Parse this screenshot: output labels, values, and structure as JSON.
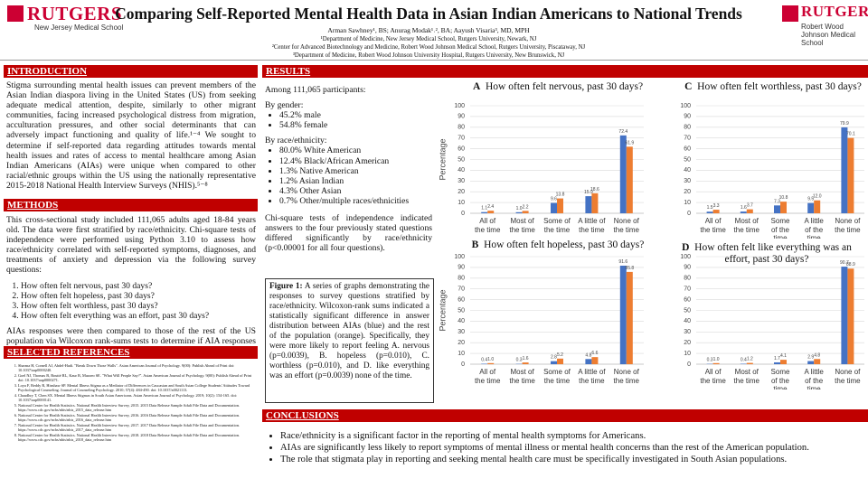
{
  "header": {
    "left_logo": "RUTGERS",
    "left_school": "New Jersey Medical School",
    "title": "Comparing Self-Reported Mental Health Data in Asian Indian Americans to National Trends",
    "authors": "Arman Sawhney¹, BS; Anurag Modak¹˒², BA; Aayush Visaria³, MD, MPH",
    "affiliations": [
      "¹Department of Medicine, New Jersey Medical School, Rutgers University, Newark, NJ",
      "²Center for Advanced Biotechnology and Medicine, Robert Wood Johnson Medical School, Rutgers University, Piscataway, NJ",
      "³Department of Medicine, Robert Wood Johnson University Hospital, Rutgers University, New Brunswick, NJ"
    ],
    "right_logo": "RUTGERS",
    "right_school": "Robert Wood Johnson Medical School"
  },
  "introduction": {
    "heading": "INTRODUCTION",
    "text": "Stigma surrounding mental health issues can prevent members of the Asian Indian diaspora living in the United States (US) from seeking adequate medical attention, despite, similarly to other migrant communities, facing increased psychological distress from migration, acculturation pressures, and other social determinants that can adversely impact functioning and quality of life.¹⁻⁴ We sought to determine if self-reported data regarding attitudes towards mental health issues and rates of access to mental healthcare among Asian Indian Americans (AIAs) were unique when compared to other racial/ethnic groups within the US using the nationally representative 2015-2018 National Health Interview Surveys (NHIS).⁵⁻⁸"
  },
  "methods": {
    "heading": "METHODS",
    "text": "This cross-sectional study included 111,065 adults aged 18-84 years old. The data were first stratified by race/ethnicity. Chi-square tests of independence were performed using Python 3.10 to assess how race/ethnicity correlated with self-reported symptoms, diagnoses, and treatments of anxiety and depression via the following survey questions:",
    "questions": [
      "How often felt nervous, past 30 days?",
      "How often felt hopeless, past 30 days?",
      "How often felt worthless, past 30 days?",
      "How often felt everything was an effort, past 30 days?"
    ],
    "closing": "AIAs responses were then compared to those of the rest of the US population via Wilcoxon rank-sums tests to determine if AIA responses specifically were unique."
  },
  "references": {
    "heading": "SELECTED REFERENCES",
    "items": [
      "Sharma H, Cornell AJ, Abdel-Hadi. \"Break Down Those Walls\". Asian American Journal of Psychology. 9(00): Publish Ahead of Print doi: 10.1037/aap0000240.",
      "Goel NJ, Thomas B, Boutté RL, Kaur B, Mazzeo SE. \"What Will People Say?\". Asian American Journal of Psychology. 9(00): Publish Ahead of Print doi: 10.1037/aap0000271.",
      "Loya F, Reddy R, Hinshaw SP. Mental Illness Stigma as a Mediator of Differences in Caucasian and South Asian College Students' Attitudes Toward Psychological Counseling. Journal of Counseling Psychology. 2010; 57(4): 484-490. doi: 10.1037/a0021113.",
      "Chaudhry T, Chen SX. Mental Illness Stigmas in South Asian Americans. Asian American Journal of Psychology. 2019; 10(2): 154-165. doi: 10.1037/aap0000141.",
      "National Center for Health Statistics. National Health Interview Survey, 2015. 2015 Data Release Sample Adult File Data and Documentation. https://www.cdc.gov/nchs/nhis/nhis_2015_data_release.htm",
      "National Center for Health Statistics. National Health Interview Survey, 2016. 2016 Data Release Sample Adult File Data and Documentation. https://www.cdc.gov/nchs/nhis/nhis_2016_data_release.htm",
      "National Center for Health Statistics. National Health Interview Survey, 2017. 2017 Data Release Sample Adult File Data and Documentation. https://www.cdc.gov/nchs/nhis/nhis_2017_data_release.htm",
      "National Center for Health Statistics. National Health Interview Survey, 2018. 2018 Data Release Sample Adult File Data and Documentation. https://www.cdc.gov/nchs/nhis/nhis_2018_data_release.htm"
    ]
  },
  "results": {
    "heading": "RESULTS",
    "intro": "Among 111,065 participants:",
    "gender_label": "By gender:",
    "gender": [
      "45.2% male",
      "54.8% female"
    ],
    "race_label": "By race/ethnicity:",
    "race": [
      "80.0% White American",
      "12.4% Black/African American",
      "1.3% Native American",
      "1.2% Asian Indian",
      "4.3% Other Asian",
      "0.7% Other/multiple races/ethnicities"
    ],
    "chi_square": "Chi-square tests of independence indicated answers to the four previously stated questions differed significantly by race/ethnicity (p<0.00001 for all four questions)."
  },
  "figure_caption": {
    "label": "Figure 1:",
    "text": "A series of graphs demonstrating the responses to survey questions stratified by race/ethnicity. Wilcoxon-rank sums indicated a statistically significant difference in answer distribution between AIAs (blue) and the rest of the population (orange). Specifically, they were more likely to report feeling A. nervous (p=0.0039), B. hopeless (p=0.010), C. worthless (p=0.010), and D. like everything was an effort (p=0.0039) none of the time."
  },
  "conclusions": {
    "heading": "CONCLUSIONS",
    "items": [
      "Race/ethnicity is a significant factor in the reporting of mental health symptoms for Americans.",
      "AIAs are significantly less likely to report symptoms of mental illness or mental health concerns than the rest of the American population.",
      "The role that stigmata play in reporting and seeking mental health care must be specifically investigated in South Asian populations."
    ]
  },
  "chart_data": [
    {
      "type": "bar",
      "panel": "A",
      "title": "How often felt nervous, past 30 days?",
      "ylabel": "Percentage",
      "categories": [
        "All of the time",
        "Most of the time",
        "Some of the time",
        "A little of the time",
        "None of the time"
      ],
      "series": [
        {
          "color": "#4472c4",
          "values": [
            1.1,
            1.0,
            9.6,
            15.9,
            72.4
          ],
          "value_labels": [
            "1.1",
            "1.0",
            "9.6",
            "15.9",
            "72.4"
          ]
        },
        {
          "color": "#ed7d31",
          "values": [
            2.4,
            2.2,
            13.8,
            18.6,
            61.9
          ],
          "value_labels": [
            "2.4",
            "2.2",
            "13.8",
            "18.6",
            "61.9"
          ]
        }
      ],
      "ylim": [
        0,
        100
      ],
      "yticks": [
        0,
        10,
        20,
        30,
        40,
        50,
        60,
        70,
        80,
        90,
        100
      ],
      "grid": true
    },
    {
      "type": "bar",
      "panel": "B",
      "title": "How often felt hopeless, past 30 days?",
      "ylabel": "Percentage",
      "categories": [
        "All of the time",
        "Most of the time",
        "Some of the time",
        "A little of the time",
        "None of the time"
      ],
      "series": [
        {
          "color": "#4472c4",
          "values": [
            0.4,
            0.3,
            2.8,
            4.8,
            91.6
          ],
          "value_labels": [
            "0.4",
            "0.3",
            "2.8",
            "4.8",
            "91.6"
          ]
        },
        {
          "color": "#ed7d31",
          "values": [
            1.0,
            1.6,
            5.2,
            6.6,
            85.8
          ],
          "value_labels": [
            "1.0",
            "1.6",
            "5.2",
            "6.6",
            "85.8"
          ]
        }
      ],
      "ylim": [
        0,
        100
      ],
      "yticks": [
        0,
        10,
        20,
        30,
        40,
        50,
        60,
        70,
        80,
        90,
        100
      ],
      "grid": true
    },
    {
      "type": "bar",
      "panel": "C",
      "title": "How often felt worthless, past 30 days?",
      "categories": [
        "All of the time",
        "Most of the time",
        "Some of the time",
        "A little of the time",
        "None of the time"
      ],
      "series": [
        {
          "color": "#4472c4",
          "values": [
            1.5,
            1.6,
            7.3,
            9.5,
            79.9
          ],
          "value_labels": [
            "1.5",
            "1.6",
            "7.3",
            "9.5",
            "79.9"
          ]
        },
        {
          "color": "#ed7d31",
          "values": [
            3.3,
            3.7,
            10.8,
            12.0,
            70.1
          ],
          "value_labels": [
            "3.3",
            "3.7",
            "10.8",
            "12.0",
            "70.1"
          ]
        }
      ],
      "ylim": [
        0,
        100
      ],
      "yticks": [
        0,
        10,
        20,
        30,
        40,
        50,
        60,
        70,
        80,
        90,
        100
      ],
      "grid": true
    },
    {
      "type": "bar",
      "panel": "D",
      "title": "How often felt like everything was an effort, past 30 days?",
      "categories": [
        "All of the time",
        "Most of the time",
        "Some of the time",
        "A little of the time",
        "None of the time"
      ],
      "series": [
        {
          "color": "#4472c4",
          "values": [
            0.3,
            0.4,
            1.7,
            2.9,
            90.7
          ],
          "value_labels": [
            "0.3",
            "0.4",
            "1.7",
            "2.9",
            "90.7"
          ]
        },
        {
          "color": "#ed7d31",
          "values": [
            1.0,
            1.2,
            4.1,
            4.8,
            88.9
          ],
          "value_labels": [
            "1.0",
            "1.2",
            "4.1",
            "4.8",
            "88.9"
          ]
        }
      ],
      "ylim": [
        0,
        100
      ],
      "yticks": [
        0,
        10,
        20,
        30,
        40,
        50,
        60,
        70,
        80,
        90,
        100
      ],
      "grid": true
    }
  ]
}
